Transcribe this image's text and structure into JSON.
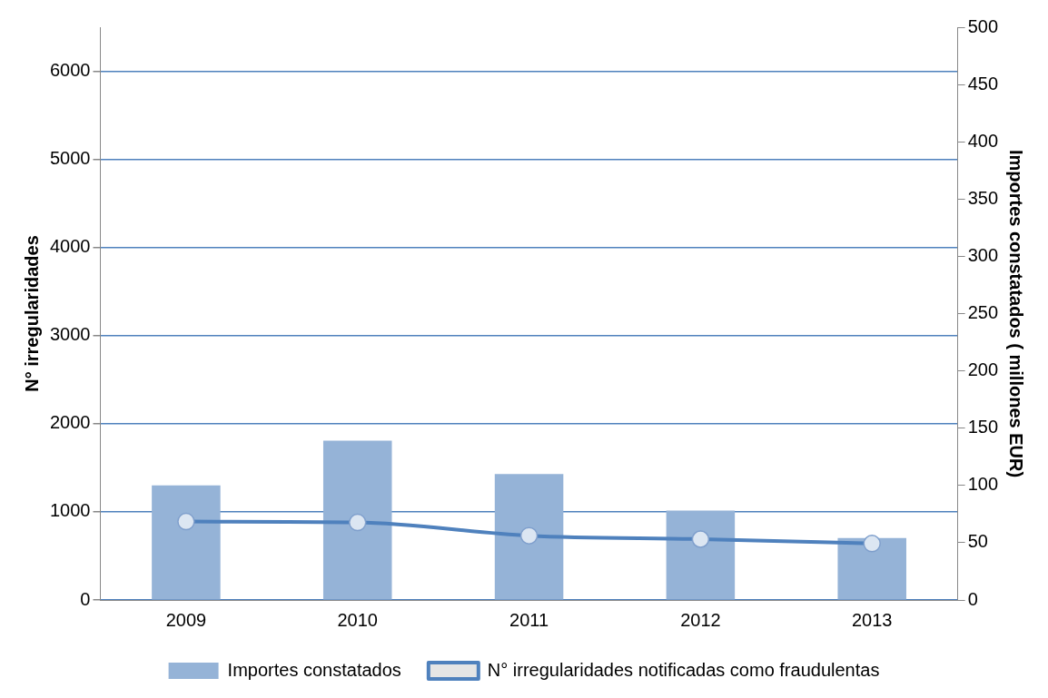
{
  "chart_data": {
    "type": "bar",
    "ylabel": "N° irregularidades",
    "y2label": "Importes constatados ( millones EUR)",
    "categories": [
      "2009",
      "2010",
      "2011",
      "2012",
      "2013"
    ],
    "series": [
      {
        "name": "Importes constatados",
        "axis": "y2",
        "color": "#95b3d7",
        "values": [
          100,
          139,
          110,
          78,
          54
        ]
      },
      {
        "name": "N° irregularidades notificadas como fraudulentas",
        "type": "line",
        "axis": "y",
        "color": "#4f81bd",
        "values": [
          890,
          880,
          730,
          690,
          640
        ]
      }
    ],
    "ylim": [
      0,
      6500
    ],
    "yticks": [
      0,
      1000,
      2000,
      3000,
      4000,
      5000,
      6000
    ],
    "y2lim": [
      0,
      500
    ],
    "y2ticks": [
      0,
      50,
      100,
      150,
      200,
      250,
      300,
      350,
      400,
      450,
      500
    ],
    "grid": "y",
    "legend": "bottom",
    "marker": "circle",
    "line_style": "solid"
  }
}
